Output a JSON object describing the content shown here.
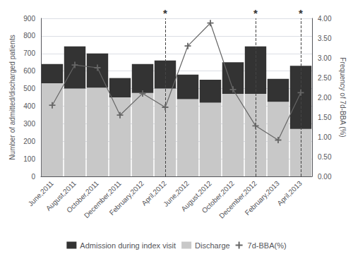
{
  "chart_data": {
    "type": "bar",
    "categories": [
      "June,2011",
      "August,2011",
      "October,2011",
      "December,2011",
      "February,2012",
      "April,2012",
      "June,2012",
      "August,2012",
      "October,2012",
      "December,2012",
      "February,2013",
      "April,2013"
    ],
    "stacked": true,
    "series": [
      {
        "name": "Discharge",
        "type": "bar",
        "color": "#c8c8c8",
        "values": [
          530,
          500,
          505,
          450,
          475,
          500,
          440,
          420,
          470,
          470,
          425,
          270
        ]
      },
      {
        "name": "Admission during index visit",
        "type": "bar",
        "color": "#333333",
        "values": [
          110,
          240,
          195,
          110,
          165,
          160,
          140,
          130,
          180,
          270,
          130,
          360
        ]
      },
      {
        "name": "7d-BBA(%)",
        "type": "line",
        "axis": "y2",
        "color": "#666666",
        "marker": "+",
        "values": [
          1.8,
          2.82,
          2.75,
          1.55,
          2.1,
          1.75,
          3.3,
          3.88,
          2.2,
          1.28,
          0.92,
          2.12
        ]
      }
    ],
    "ylabel": "Number of admitted/discharged patients",
    "y2label": "Frequency of 7d-BBA (%)",
    "ylim": [
      0,
      900
    ],
    "yticks": [
      0,
      100,
      200,
      300,
      400,
      500,
      600,
      700,
      800,
      900
    ],
    "y2lim": [
      0.0,
      4.0
    ],
    "y2ticks": [
      {
        "value": 0.0,
        "label": "0.00"
      },
      {
        "value": 0.5,
        "label": "0.50"
      },
      {
        "value": 1.0,
        "label": "1.00"
      },
      {
        "value": 1.5,
        "label": "1.50"
      },
      {
        "value": 2.0,
        "label": "2.00"
      },
      {
        "value": 2.5,
        "label": "2.50"
      },
      {
        "value": 3.0,
        "label": "3.00"
      },
      {
        "value": 3.5,
        "label": "3.50"
      },
      {
        "value": 4.0,
        "label": "4.00"
      }
    ],
    "vlines": [
      "April,2012",
      "December,2012",
      "April,2013"
    ],
    "annotations": [
      {
        "text": "*",
        "x": "April,2012",
        "y": 900
      },
      {
        "text": "*",
        "x": "December,2012",
        "y": 900
      },
      {
        "text": "*",
        "x": "April,2013",
        "y": 900
      }
    ],
    "grid": true,
    "legend": "bottom"
  }
}
